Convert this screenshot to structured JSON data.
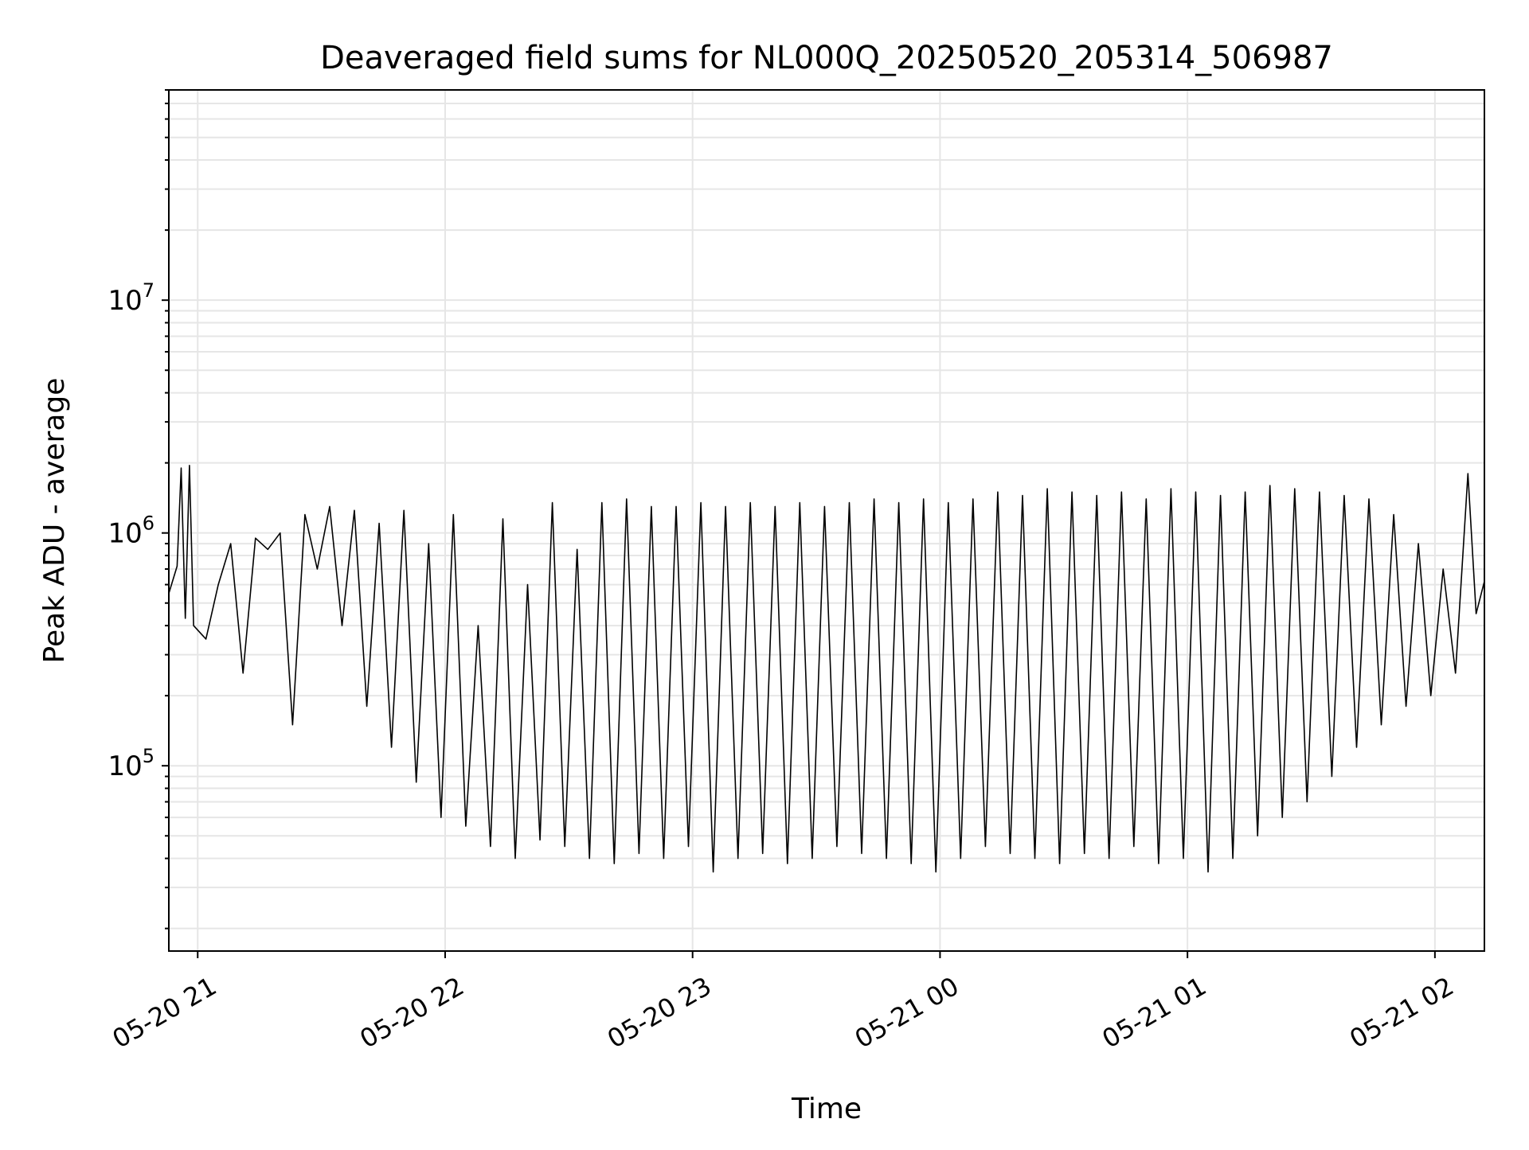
{
  "chart_data": {
    "type": "line",
    "title": "Deaveraged field sums for NL000Q_20250520_205314_506987",
    "xlabel": "Time",
    "ylabel": "Peak ADU - average",
    "yscale": "log",
    "ylim": [
      16000,
      80000000
    ],
    "xlim": [
      "2025-05-20 20:53",
      "2025-05-21 02:12"
    ],
    "grid": true,
    "line_color": "#000000",
    "grid_color": "#e6e6e6",
    "x_ticks": [
      {
        "t": "2025-05-20 21:00",
        "label": "05-20 21"
      },
      {
        "t": "2025-05-20 22:00",
        "label": "05-20 22"
      },
      {
        "t": "2025-05-20 23:00",
        "label": "05-20 23"
      },
      {
        "t": "2025-05-21 00:00",
        "label": "05-21 00"
      },
      {
        "t": "2025-05-21 01:00",
        "label": "05-21 01"
      },
      {
        "t": "2025-05-21 02:00",
        "label": "05-21 02"
      }
    ],
    "y_ticks": [
      {
        "value": 100000,
        "base": "10",
        "exp": "5"
      },
      {
        "value": 1000000,
        "base": "10",
        "exp": "6"
      },
      {
        "value": 10000000,
        "base": "10",
        "exp": "7"
      }
    ],
    "series": [
      {
        "x": [
          "2025-05-20 20:53",
          "2025-05-20 20:55",
          "2025-05-20 20:56",
          "2025-05-20 20:57",
          "2025-05-20 20:58",
          "2025-05-20 20:59",
          "2025-05-20 21:02",
          "2025-05-20 21:05",
          "2025-05-20 21:08",
          "2025-05-20 21:11",
          "2025-05-20 21:14",
          "2025-05-20 21:17",
          "2025-05-20 21:20",
          "2025-05-20 21:23",
          "2025-05-20 21:26",
          "2025-05-20 21:29",
          "2025-05-20 21:32",
          "2025-05-20 21:35",
          "2025-05-20 21:38",
          "2025-05-20 21:41",
          "2025-05-20 21:44",
          "2025-05-20 21:47",
          "2025-05-20 21:50",
          "2025-05-20 21:53",
          "2025-05-20 21:56",
          "2025-05-20 21:59",
          "2025-05-20 22:02",
          "2025-05-20 22:05",
          "2025-05-20 22:08",
          "2025-05-20 22:11",
          "2025-05-20 22:14",
          "2025-05-20 22:17",
          "2025-05-20 22:20",
          "2025-05-20 22:23",
          "2025-05-20 22:26",
          "2025-05-20 22:29",
          "2025-05-20 22:32",
          "2025-05-20 22:35",
          "2025-05-20 22:38",
          "2025-05-20 22:41",
          "2025-05-20 22:44",
          "2025-05-20 22:47",
          "2025-05-20 22:50",
          "2025-05-20 22:53",
          "2025-05-20 22:56",
          "2025-05-20 22:59",
          "2025-05-20 23:02",
          "2025-05-20 23:05",
          "2025-05-20 23:08",
          "2025-05-20 23:11",
          "2025-05-20 23:14",
          "2025-05-20 23:17",
          "2025-05-20 23:20",
          "2025-05-20 23:23",
          "2025-05-20 23:26",
          "2025-05-20 23:29",
          "2025-05-20 23:32",
          "2025-05-20 23:35",
          "2025-05-20 23:38",
          "2025-05-20 23:41",
          "2025-05-20 23:44",
          "2025-05-20 23:47",
          "2025-05-20 23:50",
          "2025-05-20 23:53",
          "2025-05-20 23:56",
          "2025-05-20 23:59",
          "2025-05-21 00:02",
          "2025-05-21 00:05",
          "2025-05-21 00:08",
          "2025-05-21 00:11",
          "2025-05-21 00:14",
          "2025-05-21 00:17",
          "2025-05-21 00:20",
          "2025-05-21 00:23",
          "2025-05-21 00:26",
          "2025-05-21 00:29",
          "2025-05-21 00:32",
          "2025-05-21 00:35",
          "2025-05-21 00:38",
          "2025-05-21 00:41",
          "2025-05-21 00:44",
          "2025-05-21 00:47",
          "2025-05-21 00:50",
          "2025-05-21 00:53",
          "2025-05-21 00:56",
          "2025-05-21 00:59",
          "2025-05-21 01:02",
          "2025-05-21 01:05",
          "2025-05-21 01:08",
          "2025-05-21 01:11",
          "2025-05-21 01:14",
          "2025-05-21 01:17",
          "2025-05-21 01:20",
          "2025-05-21 01:23",
          "2025-05-21 01:26",
          "2025-05-21 01:29",
          "2025-05-21 01:32",
          "2025-05-21 01:35",
          "2025-05-21 01:38",
          "2025-05-21 01:41",
          "2025-05-21 01:44",
          "2025-05-21 01:47",
          "2025-05-21 01:50",
          "2025-05-21 01:53",
          "2025-05-21 01:56",
          "2025-05-21 01:59",
          "2025-05-21 02:02",
          "2025-05-21 02:05",
          "2025-05-21 02:08",
          "2025-05-21 02:10",
          "2025-05-21 02:12"
        ],
        "y": [
          550000,
          720000,
          1900000,
          430000,
          1950000,
          400000,
          350000,
          600000,
          900000,
          250000,
          950000,
          850000,
          1000000,
          150000,
          1200000,
          700000,
          1300000,
          400000,
          1250000,
          180000,
          1100000,
          120000,
          1250000,
          85000,
          900000,
          60000,
          1200000,
          55000,
          400000,
          45000,
          1150000,
          40000,
          600000,
          48000,
          1350000,
          45000,
          850000,
          40000,
          1350000,
          38000,
          1400000,
          42000,
          1300000,
          40000,
          1300000,
          45000,
          1350000,
          35000,
          1300000,
          40000,
          1350000,
          42000,
          1300000,
          38000,
          1350000,
          40000,
          1300000,
          45000,
          1350000,
          42000,
          1400000,
          40000,
          1350000,
          38000,
          1400000,
          35000,
          1350000,
          40000,
          1400000,
          45000,
          1500000,
          42000,
          1450000,
          40000,
          1550000,
          38000,
          1500000,
          42000,
          1450000,
          40000,
          1500000,
          45000,
          1400000,
          38000,
          1550000,
          40000,
          1500000,
          35000,
          1450000,
          40000,
          1500000,
          50000,
          1600000,
          60000,
          1550000,
          70000,
          1500000,
          90000,
          1450000,
          120000,
          1400000,
          150000,
          1200000,
          180000,
          900000,
          200000,
          700000,
          250000,
          1800000,
          450000,
          620000
        ]
      }
    ]
  }
}
